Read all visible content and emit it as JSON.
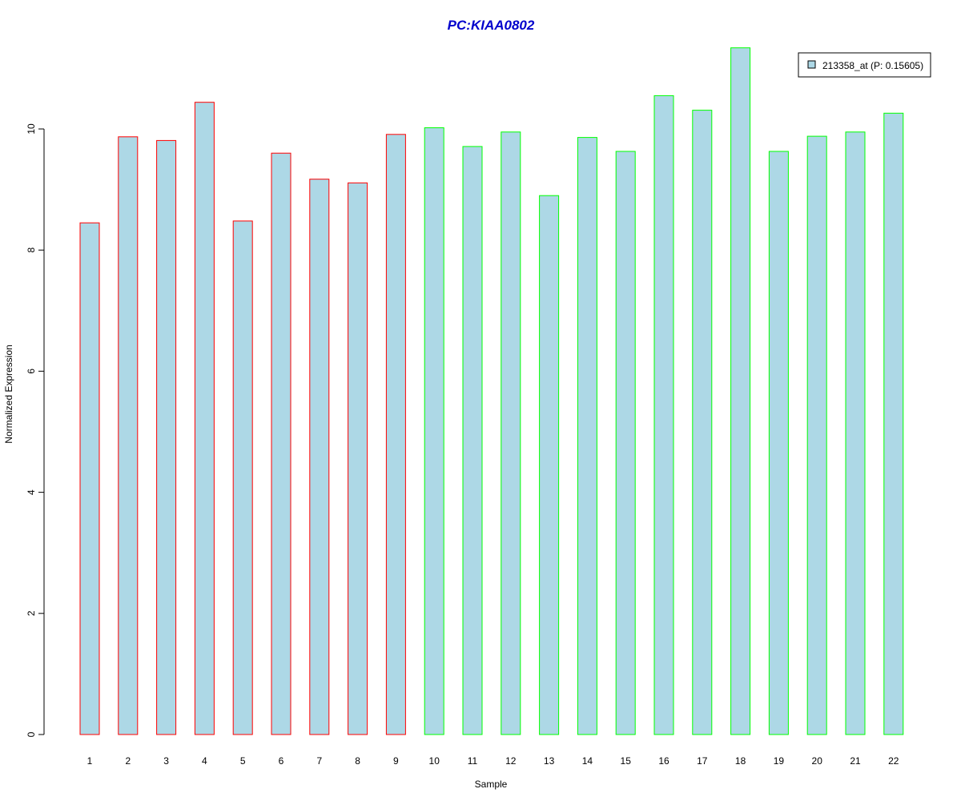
{
  "chart_data": {
    "type": "bar",
    "title": "PC:KIAA0802",
    "xlabel": "Sample",
    "ylabel": "Normalized Expression",
    "categories": [
      "1",
      "2",
      "3",
      "4",
      "5",
      "6",
      "7",
      "8",
      "9",
      "10",
      "11",
      "12",
      "13",
      "14",
      "15",
      "16",
      "17",
      "18",
      "19",
      "20",
      "21",
      "22"
    ],
    "values": [
      8.45,
      9.87,
      9.81,
      10.44,
      8.48,
      9.6,
      9.17,
      9.11,
      9.91,
      10.02,
      9.71,
      9.95,
      8.9,
      9.86,
      9.63,
      10.55,
      10.31,
      11.34,
      9.63,
      9.88,
      9.95,
      10.26
    ],
    "ylim": [
      0,
      11.4
    ],
    "yticks": [
      "0",
      "2",
      "4",
      "6",
      "8",
      "10"
    ],
    "legend": {
      "position": "top-right",
      "entries": [
        {
          "label": "213358_at (P: 0.15605)",
          "fill": "#ADD8E6"
        }
      ]
    },
    "bar_fill": "#ADD8E6",
    "bar_border_colors": [
      "#FF0000",
      "#FF0000",
      "#FF0000",
      "#FF0000",
      "#FF0000",
      "#FF0000",
      "#FF0000",
      "#FF0000",
      "#FF0000",
      "#00FF00",
      "#00FF00",
      "#00FF00",
      "#00FF00",
      "#00FF00",
      "#00FF00",
      "#00FF00",
      "#00FF00",
      "#00FF00",
      "#00FF00",
      "#00FF00",
      "#00FF00",
      "#00FF00"
    ],
    "title_color": "#0000CC",
    "grid": false
  }
}
